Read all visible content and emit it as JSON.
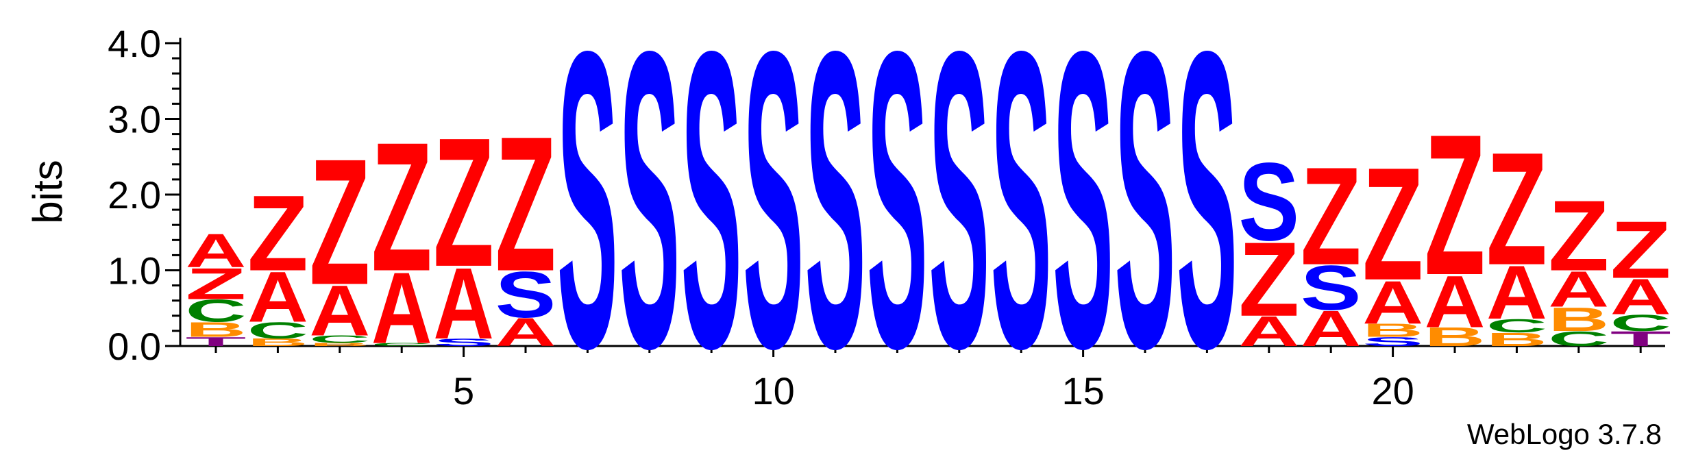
{
  "chart_data": {
    "type": "sequence_logo",
    "ylabel": "bits",
    "ylim": [
      0,
      4.0
    ],
    "yticks": [
      "0.0",
      "1.0",
      "2.0",
      "3.0",
      "4.0"
    ],
    "x_range": [
      1,
      24
    ],
    "xticks": [
      "5",
      "10",
      "15",
      "20"
    ],
    "xtick_values": [
      5,
      10,
      15,
      20
    ],
    "footer": "WebLogo 3.7.8",
    "colors": {
      "S": "#0000ff",
      "Z": "#ff0000",
      "A": "#ff0000",
      "C": "#008000",
      "B": "#ff8c00",
      "T": "#800080"
    },
    "positions": [
      {
        "pos": 1,
        "stack": [
          {
            "l": "T",
            "h": 0.12
          },
          {
            "l": "B",
            "h": 0.2
          },
          {
            "l": "C",
            "h": 0.3
          },
          {
            "l": "Z",
            "h": 0.42
          },
          {
            "l": "A",
            "h": 0.45
          }
        ]
      },
      {
        "pos": 2,
        "stack": [
          {
            "l": "B",
            "h": 0.1
          },
          {
            "l": "C",
            "h": 0.22
          },
          {
            "l": "A",
            "h": 0.68
          },
          {
            "l": "Z",
            "h": 1.02
          }
        ]
      },
      {
        "pos": 3,
        "stack": [
          {
            "l": "B",
            "h": 0.04
          },
          {
            "l": "C",
            "h": 0.1
          },
          {
            "l": "A",
            "h": 0.68
          },
          {
            "l": "Z",
            "h": 1.7
          }
        ]
      },
      {
        "pos": 4,
        "stack": [
          {
            "l": "C",
            "h": 0.04
          },
          {
            "l": "A",
            "h": 0.96
          },
          {
            "l": "Z",
            "h": 1.74
          }
        ]
      },
      {
        "pos": 5,
        "stack": [
          {
            "l": "S",
            "h": 0.1
          },
          {
            "l": "A",
            "h": 0.96
          },
          {
            "l": "Z",
            "h": 1.74
          }
        ]
      },
      {
        "pos": 6,
        "stack": [
          {
            "l": "A",
            "h": 0.38
          },
          {
            "l": "S",
            "h": 0.62
          },
          {
            "l": "Z",
            "h": 1.82
          }
        ]
      },
      {
        "pos": 7,
        "stack": [
          {
            "l": "S",
            "h": 4.0
          }
        ]
      },
      {
        "pos": 8,
        "stack": [
          {
            "l": "S",
            "h": 4.0
          }
        ]
      },
      {
        "pos": 9,
        "stack": [
          {
            "l": "S",
            "h": 4.0
          }
        ]
      },
      {
        "pos": 10,
        "stack": [
          {
            "l": "S",
            "h": 4.0
          }
        ]
      },
      {
        "pos": 11,
        "stack": [
          {
            "l": "S",
            "h": 4.0
          }
        ]
      },
      {
        "pos": 12,
        "stack": [
          {
            "l": "S",
            "h": 4.0
          }
        ]
      },
      {
        "pos": 13,
        "stack": [
          {
            "l": "S",
            "h": 4.0
          }
        ]
      },
      {
        "pos": 14,
        "stack": [
          {
            "l": "S",
            "h": 4.0
          }
        ]
      },
      {
        "pos": 15,
        "stack": [
          {
            "l": "S",
            "h": 4.0
          }
        ]
      },
      {
        "pos": 16,
        "stack": [
          {
            "l": "S",
            "h": 4.0
          }
        ]
      },
      {
        "pos": 17,
        "stack": [
          {
            "l": "S",
            "h": 4.0
          }
        ]
      },
      {
        "pos": 18,
        "stack": [
          {
            "l": "A",
            "h": 0.4
          },
          {
            "l": "Z",
            "h": 1.0
          },
          {
            "l": "S",
            "h": 1.05
          }
        ]
      },
      {
        "pos": 19,
        "stack": [
          {
            "l": "A",
            "h": 0.48
          },
          {
            "l": "S",
            "h": 0.6
          },
          {
            "l": "Z",
            "h": 1.32
          }
        ]
      },
      {
        "pos": 20,
        "stack": [
          {
            "l": "S",
            "h": 0.12
          },
          {
            "l": "B",
            "h": 0.18
          },
          {
            "l": "A",
            "h": 0.58
          },
          {
            "l": "Z",
            "h": 1.52
          }
        ]
      },
      {
        "pos": 21,
        "stack": [
          {
            "l": "B",
            "h": 0.25
          },
          {
            "l": "A",
            "h": 0.7
          },
          {
            "l": "Z",
            "h": 1.9
          }
        ]
      },
      {
        "pos": 22,
        "stack": [
          {
            "l": "B",
            "h": 0.18
          },
          {
            "l": "C",
            "h": 0.18
          },
          {
            "l": "A",
            "h": 0.72
          },
          {
            "l": "Z",
            "h": 1.52
          }
        ]
      },
      {
        "pos": 23,
        "stack": [
          {
            "l": "C",
            "h": 0.2
          },
          {
            "l": "B",
            "h": 0.32
          },
          {
            "l": "A",
            "h": 0.48
          },
          {
            "l": "Z",
            "h": 0.95
          }
        ]
      },
      {
        "pos": 24,
        "stack": [
          {
            "l": "T",
            "h": 0.2
          },
          {
            "l": "C",
            "h": 0.22
          },
          {
            "l": "A",
            "h": 0.48
          },
          {
            "l": "Z",
            "h": 0.77
          }
        ]
      }
    ]
  }
}
